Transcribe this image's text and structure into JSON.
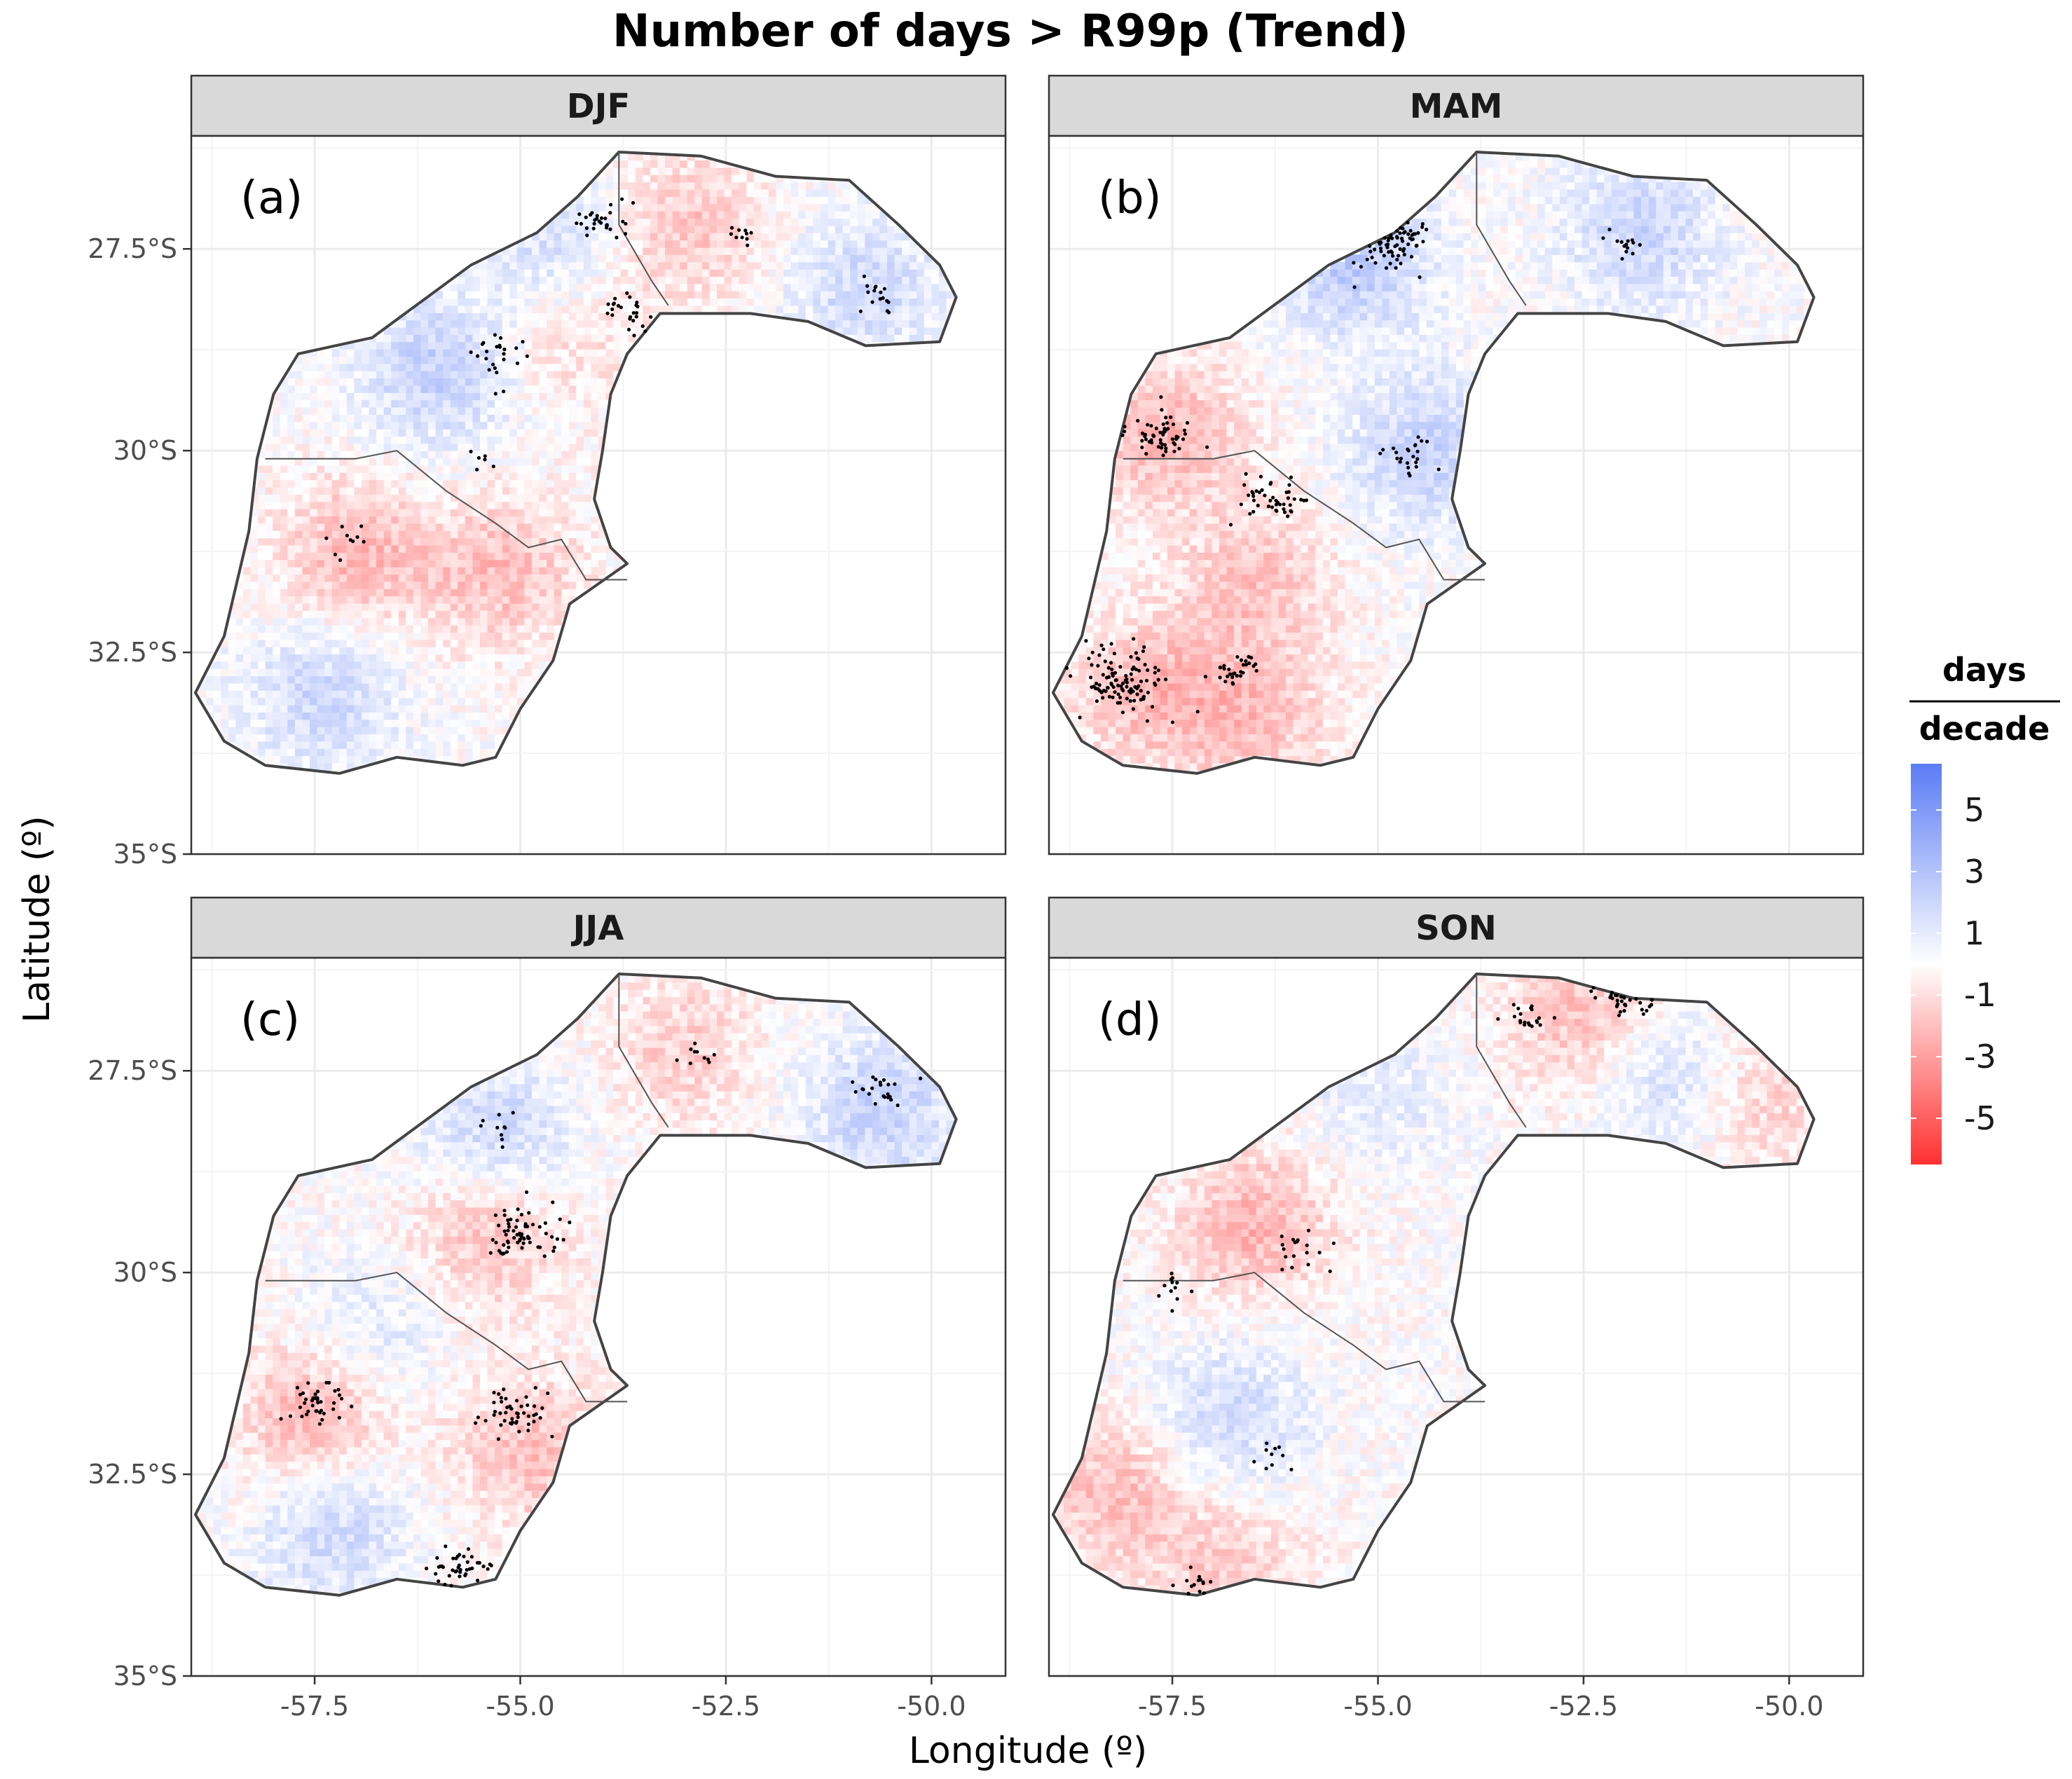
{
  "chart_data": {
    "type": "heatmap",
    "title": "Number of days > R99p (Trend)",
    "xlabel": "Longitude (º)",
    "ylabel": "Latitude (º)",
    "xlim": [
      -59.0,
      -49.1
    ],
    "ylim": [
      -35.0,
      -26.1
    ],
    "x_ticks": [
      -57.5,
      -55.0,
      -52.5,
      -50.0
    ],
    "x_tick_labels": [
      "-57.5",
      "-55.0",
      "-52.5",
      "-50.0"
    ],
    "y_ticks": [
      -27.5,
      -30.0,
      -32.5,
      -35.0
    ],
    "y_tick_labels": [
      "27.5°S",
      "30°S",
      "32.5°S",
      "35°S"
    ],
    "legend": {
      "title_numerator": "days",
      "title_denominator": "decade",
      "position": "right",
      "range": [
        -6.5,
        6.5
      ],
      "ticks": [
        5,
        3,
        1,
        -1,
        -3,
        -5
      ],
      "tick_labels": [
        "5",
        "3",
        "1",
        "-1",
        "-3",
        "-5"
      ],
      "colors": {
        "high": "#5a7cf5",
        "mid": "#ffffff",
        "low": "#ff3030"
      }
    },
    "region_outline": [
      [
        -58.95,
        -33.0
      ],
      [
        -58.6,
        -32.3
      ],
      [
        -58.3,
        -31.0
      ],
      [
        -58.2,
        -30.1
      ],
      [
        -58.0,
        -29.3
      ],
      [
        -57.7,
        -28.8
      ],
      [
        -56.8,
        -28.6
      ],
      [
        -55.6,
        -27.7
      ],
      [
        -54.8,
        -27.3
      ],
      [
        -54.3,
        -26.85
      ],
      [
        -53.8,
        -26.3
      ],
      [
        -52.8,
        -26.35
      ],
      [
        -51.9,
        -26.6
      ],
      [
        -51.0,
        -26.65
      ],
      [
        -50.4,
        -27.2
      ],
      [
        -49.9,
        -27.7
      ],
      [
        -49.7,
        -28.1
      ],
      [
        -49.9,
        -28.65
      ],
      [
        -50.8,
        -28.7
      ],
      [
        -51.5,
        -28.4
      ],
      [
        -52.2,
        -28.3
      ],
      [
        -53.3,
        -28.3
      ],
      [
        -53.7,
        -28.8
      ],
      [
        -53.9,
        -29.3
      ],
      [
        -54.0,
        -30.0
      ],
      [
        -54.1,
        -30.6
      ],
      [
        -53.9,
        -31.2
      ],
      [
        -53.7,
        -31.4
      ],
      [
        -54.4,
        -31.9
      ],
      [
        -54.6,
        -32.6
      ],
      [
        -55.0,
        -33.2
      ],
      [
        -55.3,
        -33.8
      ],
      [
        -55.7,
        -33.9
      ],
      [
        -56.5,
        -33.8
      ],
      [
        -57.2,
        -34.0
      ],
      [
        -58.1,
        -33.9
      ],
      [
        -58.6,
        -33.6
      ]
    ],
    "inner_borders": [
      [
        [
          -53.8,
          -26.3
        ],
        [
          -53.8,
          -27.2
        ],
        [
          -53.4,
          -27.9
        ],
        [
          -53.2,
          -28.2
        ]
      ],
      [
        [
          -58.1,
          -30.1
        ],
        [
          -57.0,
          -30.1
        ],
        [
          -56.5,
          -30.0
        ],
        [
          -55.9,
          -30.5
        ],
        [
          -55.3,
          -30.9
        ],
        [
          -54.9,
          -31.2
        ],
        [
          -54.5,
          -31.1
        ],
        [
          -54.2,
          -31.6
        ],
        [
          -53.7,
          -31.6
        ]
      ]
    ],
    "panels": [
      {
        "strip": "DJF",
        "tag": "(a)",
        "seed": 11,
        "regional_anomalies": [
          {
            "lon": -56.0,
            "lat": -29.0,
            "value": 2.3
          },
          {
            "lon": -54.6,
            "lat": -27.4,
            "value": 1.8
          },
          {
            "lon": -57.4,
            "lat": -33.0,
            "value": 1.9
          },
          {
            "lon": -50.8,
            "lat": -28.0,
            "value": 1.8
          },
          {
            "lon": -57.0,
            "lat": -31.3,
            "value": -2.2
          },
          {
            "lon": -55.2,
            "lat": -31.5,
            "value": -2.0
          },
          {
            "lon": -53.0,
            "lat": -27.2,
            "value": -1.8
          },
          {
            "lon": -54.5,
            "lat": -28.5,
            "value": -1.2
          }
        ],
        "significance_clusters": [
          {
            "lon": -54.0,
            "lat": -27.2,
            "n": 30
          },
          {
            "lon": -53.6,
            "lat": -28.3,
            "n": 25
          },
          {
            "lon": -55.3,
            "lat": -28.8,
            "n": 24
          },
          {
            "lon": -50.6,
            "lat": -28.1,
            "n": 16
          },
          {
            "lon": -52.3,
            "lat": -27.3,
            "n": 10
          },
          {
            "lon": -57.1,
            "lat": -31.1,
            "n": 10
          },
          {
            "lon": -55.5,
            "lat": -30.1,
            "n": 6
          }
        ]
      },
      {
        "strip": "MAM",
        "tag": "(b)",
        "seed": 23,
        "regional_anomalies": [
          {
            "lon": -55.3,
            "lat": -27.6,
            "value": 2.6
          },
          {
            "lon": -54.4,
            "lat": -30.0,
            "value": 2.2
          },
          {
            "lon": -51.8,
            "lat": -27.3,
            "value": 2.0
          },
          {
            "lon": -57.6,
            "lat": -29.8,
            "value": -2.2
          },
          {
            "lon": -56.5,
            "lat": -31.6,
            "value": -1.8
          },
          {
            "lon": -57.8,
            "lat": -33.0,
            "value": -2.0
          },
          {
            "lon": -56.5,
            "lat": -33.3,
            "value": -1.8
          }
        ],
        "significance_clusters": [
          {
            "lon": -54.8,
            "lat": -27.4,
            "n": 70
          },
          {
            "lon": -54.6,
            "lat": -30.1,
            "n": 24
          },
          {
            "lon": -57.7,
            "lat": -29.8,
            "n": 55
          },
          {
            "lon": -56.3,
            "lat": -30.6,
            "n": 45
          },
          {
            "lon": -58.1,
            "lat": -32.8,
            "n": 110
          },
          {
            "lon": -56.7,
            "lat": -32.7,
            "n": 30
          },
          {
            "lon": -52.0,
            "lat": -27.5,
            "n": 14
          }
        ]
      },
      {
        "strip": "JJA",
        "tag": "(c)",
        "seed": 37,
        "regional_anomalies": [
          {
            "lon": -55.3,
            "lat": -28.3,
            "value": 2.0
          },
          {
            "lon": -50.6,
            "lat": -28.0,
            "value": 2.2
          },
          {
            "lon": -57.3,
            "lat": -33.1,
            "value": 2.0
          },
          {
            "lon": -56.8,
            "lat": -30.8,
            "value": 1.2
          },
          {
            "lon": -55.4,
            "lat": -29.5,
            "value": -2.0
          },
          {
            "lon": -57.5,
            "lat": -31.8,
            "value": -2.6
          },
          {
            "lon": -54.9,
            "lat": -32.2,
            "value": -2.0
          },
          {
            "lon": -53.0,
            "lat": -27.2,
            "value": -1.5
          }
        ],
        "significance_clusters": [
          {
            "lon": -55.0,
            "lat": -29.5,
            "n": 65
          },
          {
            "lon": -57.5,
            "lat": -31.6,
            "n": 40
          },
          {
            "lon": -55.1,
            "lat": -31.8,
            "n": 48
          },
          {
            "lon": -55.8,
            "lat": -33.7,
            "n": 40
          },
          {
            "lon": -50.6,
            "lat": -27.8,
            "n": 22
          },
          {
            "lon": -52.8,
            "lat": -27.3,
            "n": 10
          },
          {
            "lon": -55.3,
            "lat": -28.2,
            "n": 10
          }
        ]
      },
      {
        "strip": "SON",
        "tag": "(d)",
        "seed": 51,
        "regional_anomalies": [
          {
            "lon": -56.5,
            "lat": -29.4,
            "value": -2.3
          },
          {
            "lon": -52.5,
            "lat": -26.8,
            "value": -2.0
          },
          {
            "lon": -50.4,
            "lat": -27.8,
            "value": -1.6
          },
          {
            "lon": -58.2,
            "lat": -32.7,
            "value": -2.0
          },
          {
            "lon": -56.8,
            "lat": -33.7,
            "value": -1.6
          },
          {
            "lon": -56.8,
            "lat": -31.8,
            "value": 1.8
          },
          {
            "lon": -51.4,
            "lat": -27.6,
            "value": 1.8
          },
          {
            "lon": -55.0,
            "lat": -27.8,
            "value": 0.9
          }
        ],
        "significance_clusters": [
          {
            "lon": -52.0,
            "lat": -26.5,
            "n": 32
          },
          {
            "lon": -53.2,
            "lat": -26.9,
            "n": 20
          },
          {
            "lon": -56.0,
            "lat": -29.7,
            "n": 18
          },
          {
            "lon": -57.5,
            "lat": -30.2,
            "n": 12
          },
          {
            "lon": -56.3,
            "lat": -32.2,
            "n": 10
          },
          {
            "lon": -57.2,
            "lat": -33.9,
            "n": 14
          }
        ]
      }
    ]
  }
}
